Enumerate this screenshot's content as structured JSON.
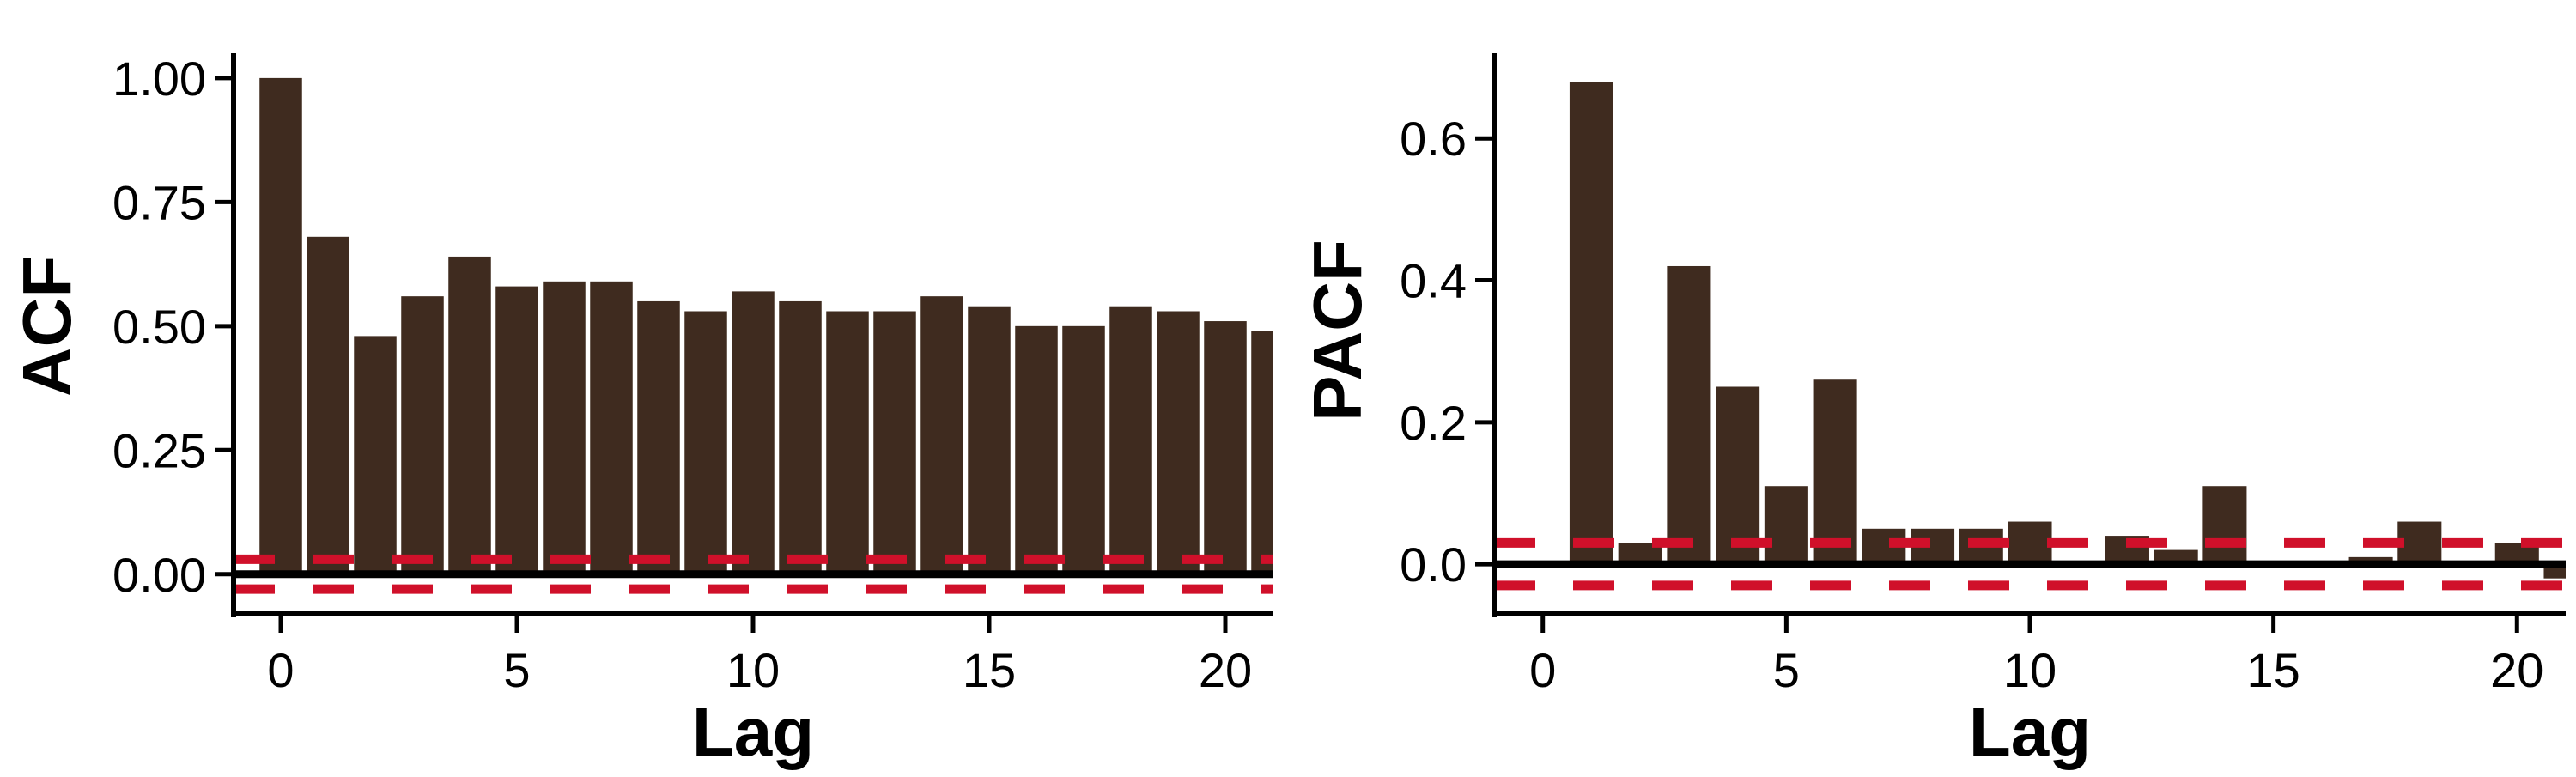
{
  "colors": {
    "bar": "#3f2b1f",
    "confidence_band": "#d0102a",
    "axis": "#000000",
    "background": "#ffffff"
  },
  "chart_data": [
    {
      "type": "bar",
      "panel": "ACF",
      "xlabel": "Lag",
      "ylabel": "ACF",
      "x_ticks": [
        0,
        5,
        10,
        15,
        20
      ],
      "y_ticks": [
        0.0,
        0.25,
        0.5,
        0.75,
        1.0
      ],
      "y_tick_labels": [
        "0.00",
        "0.25",
        "0.50",
        "0.75",
        "1.00"
      ],
      "xlim": [
        -1,
        21
      ],
      "ylim": [
        -0.08,
        1.05
      ],
      "lags": [
        0,
        1,
        2,
        3,
        4,
        5,
        6,
        7,
        8,
        9,
        10,
        11,
        12,
        13,
        14,
        15,
        16,
        17,
        18,
        19,
        20,
        21
      ],
      "values": [
        1.0,
        0.68,
        0.48,
        0.56,
        0.64,
        0.58,
        0.59,
        0.59,
        0.55,
        0.53,
        0.57,
        0.55,
        0.53,
        0.53,
        0.56,
        0.54,
        0.5,
        0.5,
        0.54,
        0.53,
        0.51,
        0.49
      ],
      "confidence_bounds": [
        0.03,
        -0.03
      ],
      "grid": false
    },
    {
      "type": "bar",
      "panel": "PACF",
      "xlabel": "Lag",
      "ylabel": "PACF",
      "x_ticks": [
        0,
        5,
        10,
        15,
        20
      ],
      "y_ticks": [
        0.0,
        0.2,
        0.4,
        0.6
      ],
      "y_tick_labels": [
        "0.0",
        "0.2",
        "0.4",
        "0.6"
      ],
      "xlim": [
        -1,
        21
      ],
      "ylim": [
        -0.07,
        0.72
      ],
      "lags": [
        1,
        2,
        3,
        4,
        5,
        6,
        7,
        8,
        9,
        10,
        11,
        12,
        13,
        14,
        15,
        16,
        17,
        18,
        19,
        20,
        21
      ],
      "values": [
        0.68,
        0.03,
        0.42,
        0.25,
        0.11,
        0.26,
        0.05,
        0.05,
        0.05,
        0.06,
        0.0,
        0.04,
        0.02,
        0.11,
        0.0,
        0.0,
        0.01,
        0.06,
        0.0,
        0.03,
        -0.02
      ],
      "confidence_bounds": [
        0.03,
        -0.03
      ],
      "grid": false
    }
  ]
}
